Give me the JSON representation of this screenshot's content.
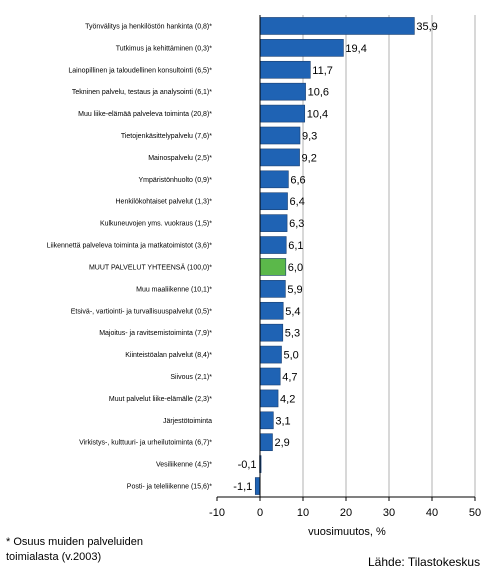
{
  "chart_data": {
    "type": "bar",
    "orientation": "horizontal",
    "categories": [
      "Työnvälitys ja henkilöstön hankinta (0,8)*",
      "Tutkimus ja kehittäminen (0,3)*",
      "Lainopillinen ja taloudellinen konsultointi (6,5)*",
      "Tekninen palvelu, testaus ja analysointi (6,1)*",
      "Muu liike-elämää palveleva toiminta (20,8)*",
      "Tietojenkäsittelypalvelu (7,6)*",
      "Mainospalvelu (2,5)*",
      "Ympäristönhuolto (0,9)*",
      "Henkilökohtaiset palvelut (1,3)*",
      "Kulkuneuvojen yms. vuokraus (1,5)*",
      "Liikennettä palveleva toiminta ja matkatoimistot (3,6)*",
      "MUUT PALVELUT YHTEENSÄ (100,0)*",
      "Muu maaliikenne (10,1)*",
      "Etsivä-, vartiointi- ja turvallisuuspalvelut (0,5)*",
      "Majoitus- ja ravitsemistoiminta (7,9)*",
      "Kiinteistöalan palvelut (8,4)*",
      "Siivous (2,1)*",
      "Muut palvelut liike-elämälle (2,3)*",
      "Järjestötoiminta",
      "Virkistys-, kulttuuri- ja urheilutoiminta (6,7)*",
      "Vesiliikenne (4,5)*",
      "Posti- ja teleliikenne (15,6)*"
    ],
    "values": [
      35.9,
      19.4,
      11.7,
      10.6,
      10.4,
      9.3,
      9.2,
      6.6,
      6.4,
      6.3,
      6.1,
      6.0,
      5.9,
      5.4,
      5.3,
      5.0,
      4.7,
      4.2,
      3.1,
      2.9,
      -0.1,
      -1.1
    ],
    "value_labels": [
      "35,9",
      "19,4",
      "11,7",
      "10,6",
      "10,4",
      "9,3",
      "9,2",
      "6,6",
      "6,4",
      "6,3",
      "6,1",
      "6,0",
      "5,9",
      "5,4",
      "5,3",
      "5,0",
      "4,7",
      "4,2",
      "3,1",
      "2,9",
      "-0,1",
      "-1,1"
    ],
    "highlight_index": 11,
    "xlim": [
      -10,
      50
    ],
    "xticks": [
      -10,
      0,
      10,
      20,
      30,
      40,
      50
    ],
    "xlabel": "vuosimuutos, %",
    "grid": true,
    "colors": {
      "bar": "#1f63b4",
      "highlight": "#5bb84a",
      "grid": "#b0b0b0",
      "axis": "#000000"
    }
  },
  "footnote": "* Osuus muiden palveluiden\ntoimialasta (v.2003)",
  "source": "Lähde: Tilastokeskus"
}
